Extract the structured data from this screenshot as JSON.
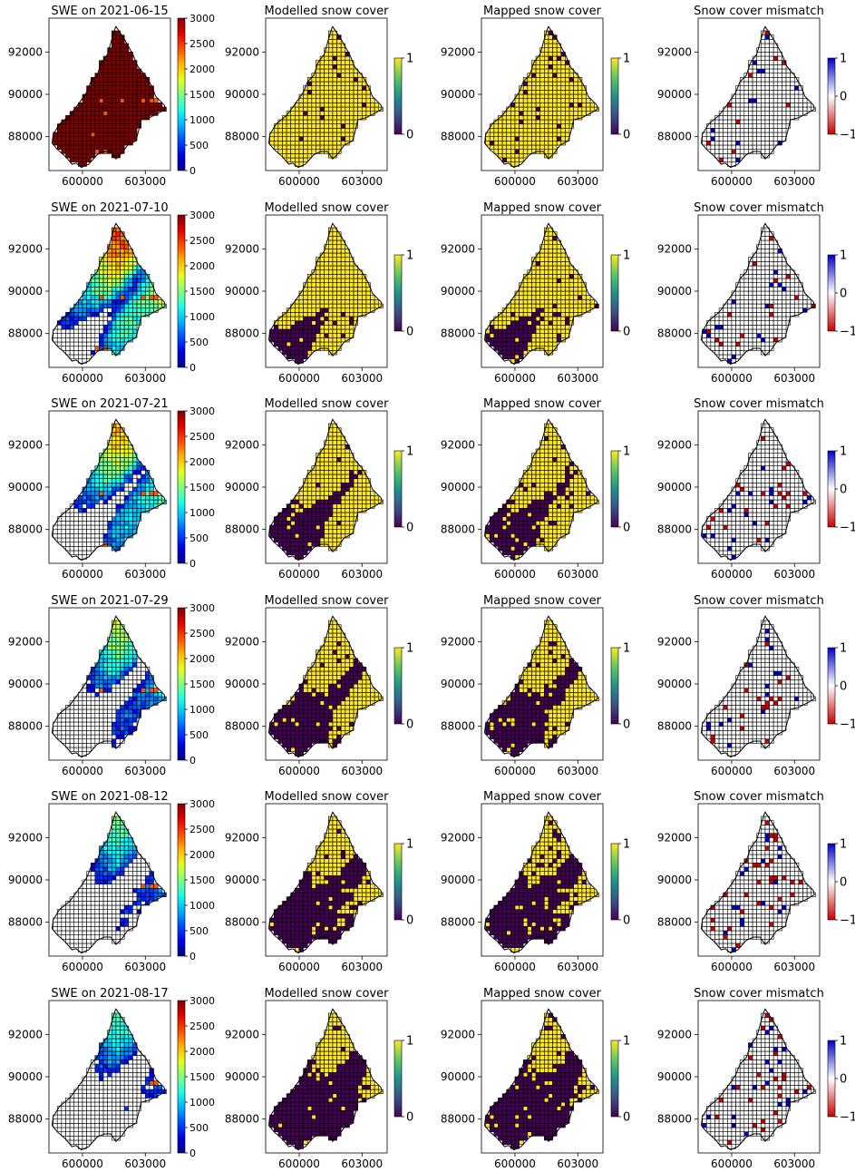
{
  "figure": {
    "rows": [
      {
        "date": "2021-06-15",
        "swe_title": "SWE on 2021-06-15",
        "snowfree_frac": 0.0,
        "mod_noise": 0.04,
        "mis_frac": 0.06
      },
      {
        "date": "2021-07-10",
        "swe_title": "SWE on 2021-07-10",
        "snowfree_frac": 0.22,
        "mod_noise": 0.05,
        "mis_frac": 0.09
      },
      {
        "date": "2021-07-21",
        "swe_title": "SWE on 2021-07-21",
        "snowfree_frac": 0.36,
        "mod_noise": 0.05,
        "mis_frac": 0.08
      },
      {
        "date": "2021-07-29",
        "swe_title": "SWE on 2021-07-29",
        "snowfree_frac": 0.52,
        "mod_noise": 0.05,
        "mis_frac": 0.1
      },
      {
        "date": "2021-08-12",
        "swe_title": "SWE on 2021-08-12",
        "snowfree_frac": 0.66,
        "mod_noise": 0.05,
        "mis_frac": 0.12
      },
      {
        "date": "2021-08-17",
        "swe_title": "SWE on 2021-08-17",
        "snowfree_frac": 0.74,
        "mod_noise": 0.05,
        "mis_frac": 0.12
      }
    ],
    "panel_titles": [
      "Modelled snow cover",
      "Mapped snow cover",
      "Snow cover mismatch"
    ],
    "x_ticks": [
      "600000",
      "603000"
    ],
    "y_ticks": [
      "92000",
      "90000",
      "88000"
    ],
    "swe_colorbar_ticks": [
      "3000",
      "2500",
      "2000",
      "1500",
      "1000",
      "500",
      "0"
    ],
    "cover_colorbar_ticks": [
      "1",
      "0"
    ],
    "mismatch_colorbar_ticks": [
      "1",
      "0",
      "−1"
    ],
    "colors": {
      "snow": "#fde725",
      "nosnow": "#440154",
      "mis_pos": "#0000cc",
      "mis_neg": "#cc0000",
      "grid_line": "#000000",
      "empty": "#ffffff"
    }
  },
  "chart_data": [
    {
      "type": "heatmap",
      "description_panels": "6 rows x 4 columns of gridded maps over x 598400-604200, y 86400-93600",
      "x_range": [
        598400,
        604200
      ],
      "y_range": [
        86400,
        93600
      ],
      "x_ticks": [
        600000,
        603000
      ],
      "y_ticks": [
        88000,
        90000,
        92000
      ],
      "dates": [
        "2021-06-15",
        "2021-07-10",
        "2021-07-21",
        "2021-07-29",
        "2021-08-12",
        "2021-08-17"
      ],
      "swe_colorbar": {
        "colormap": "jet",
        "range": [
          0,
          3000
        ],
        "ticks": [
          0,
          500,
          1000,
          1500,
          2000,
          2500,
          3000
        ]
      },
      "cover_colorbar": {
        "colormap": "viridis",
        "range": [
          0,
          1
        ],
        "ticks": [
          0,
          1
        ]
      },
      "mismatch_colorbar": {
        "colormap": "red-white-blue",
        "range": [
          -1,
          1
        ],
        "ticks": [
          -1,
          0,
          1
        ]
      }
    }
  ]
}
